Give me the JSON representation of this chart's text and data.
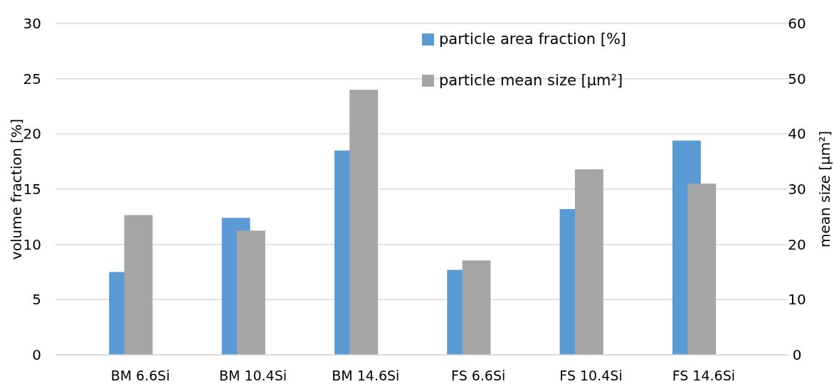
{
  "chart_data": {
    "type": "bar",
    "categories": [
      "BM 6.6Si",
      "BM 10.4Si",
      "BM 14.6Si",
      "FS 6.6Si",
      "FS 10.4Si",
      "FS 14.6Si"
    ],
    "series": [
      {
        "name": "particle area fraction [%]",
        "color": "#5b9bd5",
        "values": [
          7.5,
          12.4,
          18.5,
          7.7,
          13.2,
          19.4
        ]
      },
      {
        "name": "particle mean size [µm²]",
        "color": "#a5a5a5",
        "axis": "y2",
        "values": [
          25.3,
          22.5,
          48,
          17.1,
          33.6,
          31
        ]
      }
    ],
    "ylabel": "volume fraction [%]",
    "y2label": "mean size [µm²]",
    "ylim": [
      0,
      30
    ],
    "yticks": [
      0,
      5,
      10,
      15,
      20,
      25,
      30
    ],
    "y2lim": [
      0,
      60
    ],
    "y2ticks": [
      0,
      10,
      20,
      30,
      40,
      50,
      60
    ],
    "grid": "y",
    "legend": "top right"
  }
}
